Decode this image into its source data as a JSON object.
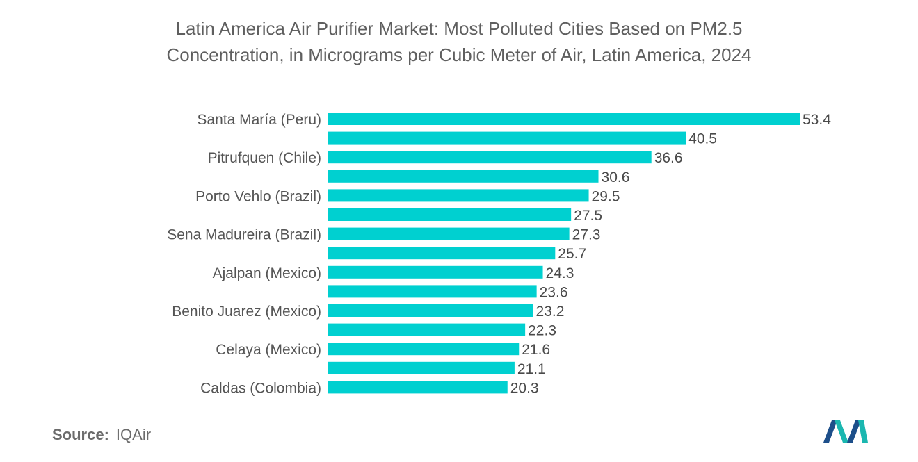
{
  "title": {
    "line1": "Latin America Air Purifier Market: Most Polluted Cities Based on PM2.5",
    "line2": "Concentration, in Micrograms per Cubic Meter of Air, Latin America, 2024"
  },
  "source": {
    "label": "Source:",
    "value": "IQAir"
  },
  "colors": {
    "bar": "#00d0d0",
    "logo_dark": "#1d4f8a",
    "logo_teal": "#1bb7b0"
  },
  "chart_data": {
    "type": "bar",
    "orientation": "horizontal",
    "title": "Latin America Air Purifier Market: Most Polluted Cities Based on PM2.5 Concentration, in Micrograms per Cubic Meter of Air, Latin America, 2024",
    "categories": [
      "Santa María (Peru)",
      "",
      "Pitrufquen (Chile)",
      "",
      "Porto Vehlo (Brazil)",
      "",
      "Sena Madureira (Brazil)",
      "",
      "Ajalpan (Mexico)",
      "",
      "Benito Juarez (Mexico)",
      "",
      "Celaya (Mexico)",
      "",
      "Caldas (Colombia)"
    ],
    "values": [
      53.4,
      40.5,
      36.6,
      30.6,
      29.5,
      27.5,
      27.3,
      25.7,
      24.3,
      23.6,
      23.2,
      22.3,
      21.6,
      21.1,
      20.3
    ],
    "value_labels": [
      "53.4",
      "40.5",
      "36.6",
      "30.6",
      "29.5",
      "27.5",
      "27.3",
      "25.7",
      "24.3",
      "23.6",
      "23.2",
      "22.3",
      "21.6",
      "21.1",
      "20.3"
    ],
    "xlabel": "",
    "ylabel": "",
    "xlim": [
      0,
      53.4
    ],
    "grid": false,
    "legend": "none"
  }
}
